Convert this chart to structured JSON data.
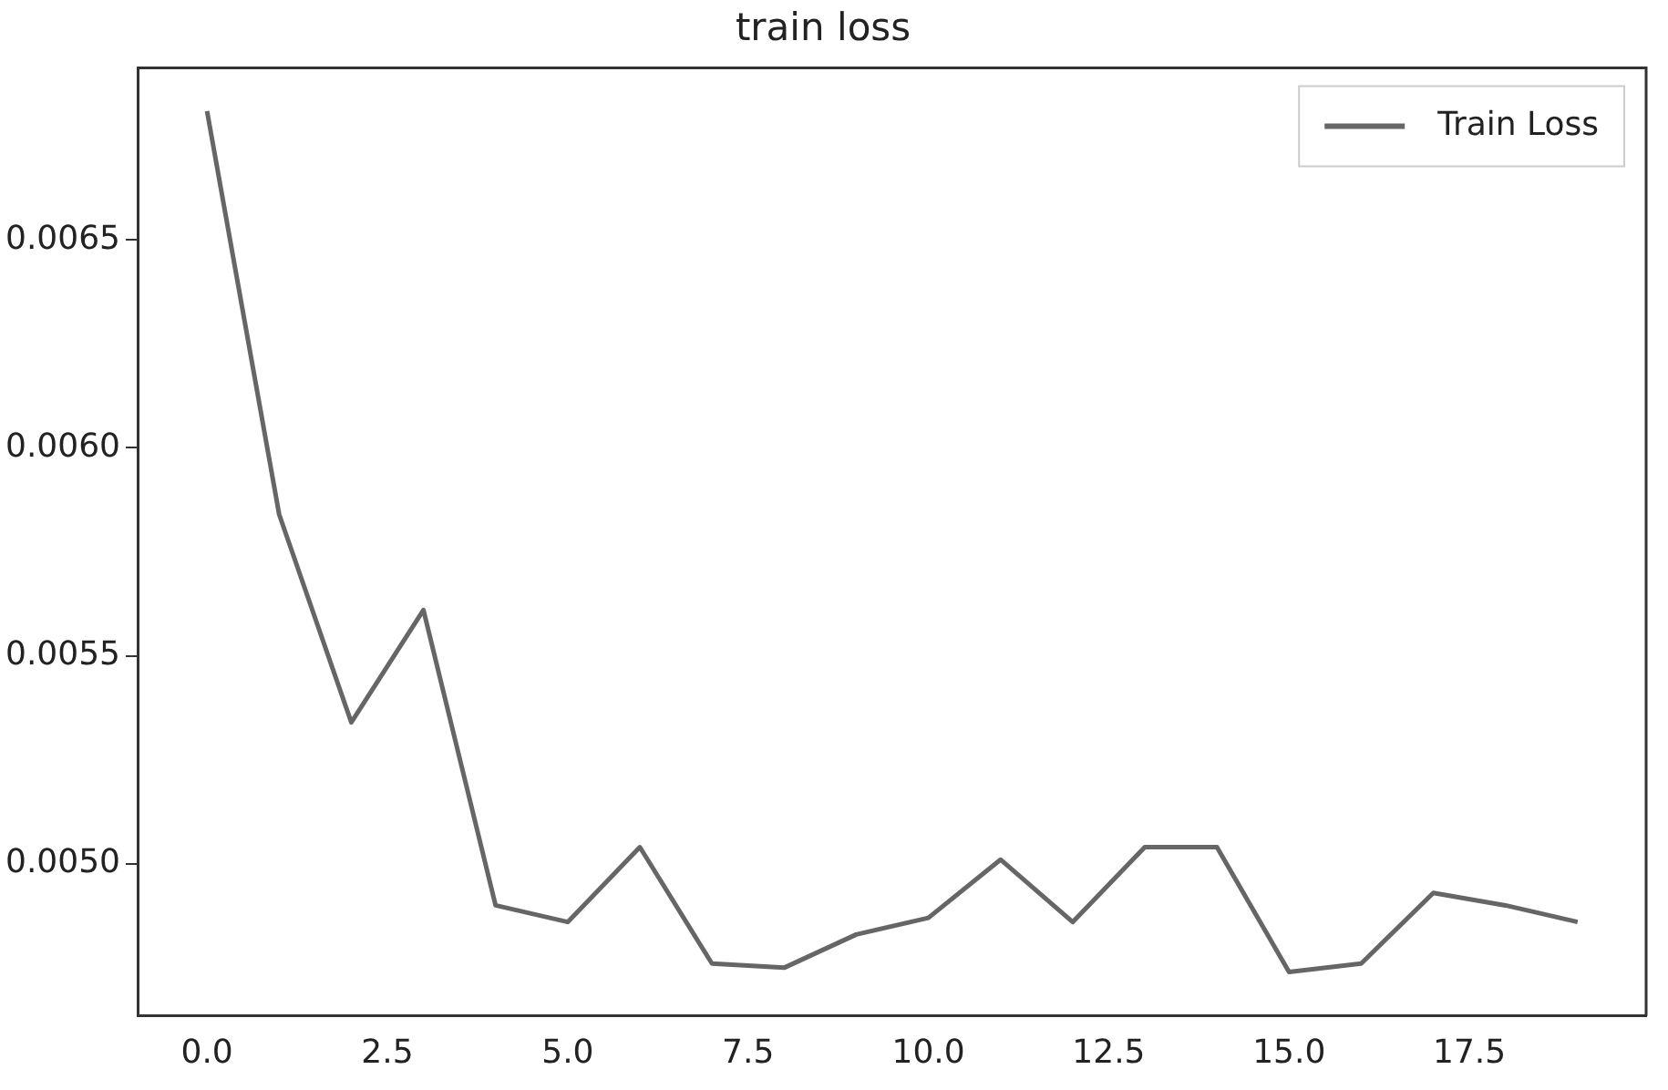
{
  "chart_data": {
    "type": "line",
    "title": "train loss",
    "x": [
      0,
      1,
      2,
      3,
      4,
      5,
      6,
      7,
      8,
      9,
      10,
      11,
      12,
      13,
      14,
      15,
      16,
      17,
      18,
      19
    ],
    "series": [
      {
        "name": "Train Loss",
        "color": "#666666",
        "values": [
          0.00681,
          0.00584,
          0.00534,
          0.00561,
          0.0049,
          0.00486,
          0.00504,
          0.00476,
          0.00475,
          0.00483,
          0.00487,
          0.00501,
          0.00486,
          0.00504,
          0.00504,
          0.00474,
          0.00476,
          0.00493,
          0.0049,
          0.00486
        ]
      }
    ],
    "xlim": [
      -0.95,
      19.95
    ],
    "xticks": [
      {
        "value": 0,
        "label": "0.0"
      },
      {
        "value": 2.5,
        "label": "2.5"
      },
      {
        "value": 5,
        "label": "5.0"
      },
      {
        "value": 7.5,
        "label": "7.5"
      },
      {
        "value": 10,
        "label": "10.0"
      },
      {
        "value": 12.5,
        "label": "12.5"
      },
      {
        "value": 15,
        "label": "15.0"
      },
      {
        "value": 17.5,
        "label": "17.5"
      }
    ],
    "ylim": [
      0.004634,
      0.006914
    ],
    "yticks": [
      {
        "value": 0.005,
        "label": "0.0050"
      },
      {
        "value": 0.0055,
        "label": "0.0055"
      },
      {
        "value": 0.006,
        "label": "0.0060"
      },
      {
        "value": 0.0065,
        "label": "0.0065"
      }
    ],
    "legend": "top right",
    "grid": false,
    "marker": "none",
    "line_style": "solid"
  }
}
